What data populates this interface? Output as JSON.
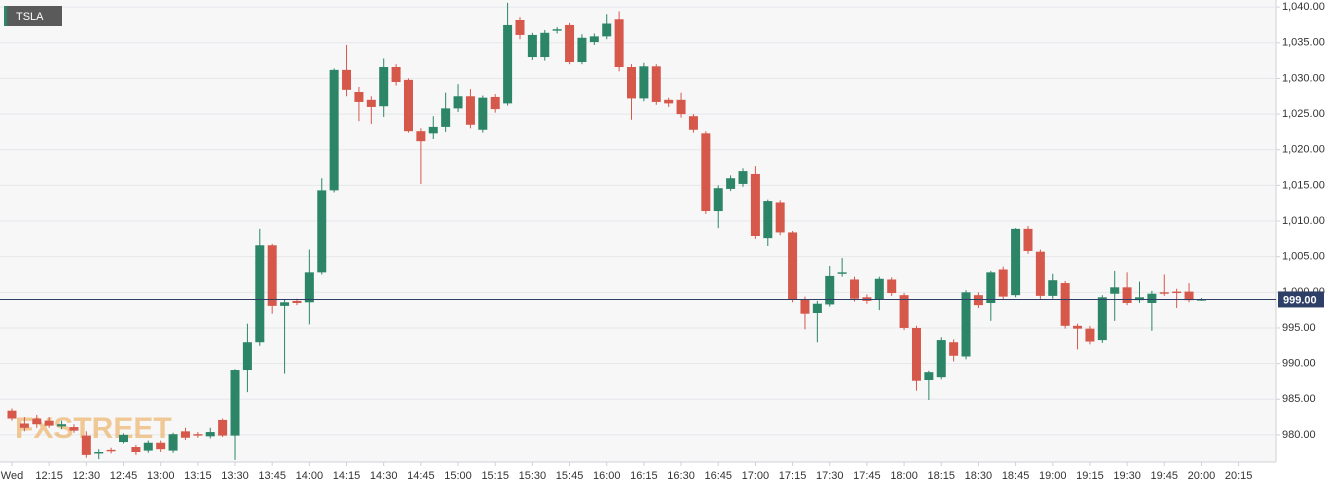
{
  "chart_data": {
    "type": "candlestick",
    "title": "TSLA",
    "watermark": "FXSTREET",
    "categories": [
      "Wed",
      null,
      null,
      "12:15",
      null,
      null,
      "12:30",
      null,
      null,
      "12:45",
      null,
      null,
      "13:00",
      null,
      null,
      "13:15",
      null,
      null,
      "13:30",
      null,
      null,
      "13:45",
      null,
      null,
      "14:00",
      null,
      null,
      "14:15",
      null,
      null,
      "14:30",
      null,
      null,
      "14:45",
      null,
      null,
      "15:00",
      null,
      null,
      "15:15",
      null,
      null,
      "15:30",
      null,
      null,
      "15:45",
      null,
      null,
      "16:00",
      null,
      null,
      "16:15",
      null,
      null,
      "16:30",
      null,
      null,
      "16:45",
      null,
      null,
      "17:00",
      null,
      null,
      "17:15",
      null,
      null,
      "17:30",
      null,
      null,
      "17:45",
      null,
      null,
      "18:00",
      null,
      null,
      "18:15",
      null,
      null,
      "18:30",
      null,
      null,
      "18:45",
      null,
      null,
      "19:00",
      null,
      null,
      "19:15",
      null,
      null,
      "19:30",
      null,
      null,
      "19:45",
      null,
      null,
      "20:00",
      null,
      null,
      "20:15"
    ],
    "open": [
      983.4,
      981.6,
      982.3,
      982.0,
      981.2,
      981.1,
      979.9,
      977.4,
      977.9,
      979.0,
      978.3,
      977.8,
      978.9,
      977.8,
      980.5,
      980.1,
      979.8,
      982.1,
      979.9,
      989.1,
      993.0,
      1006.6,
      998.1,
      998.8,
      998.6,
      1002.8,
      1014.3,
      1031.2,
      1028.1,
      1027.0,
      1026.1,
      1031.6,
      1029.8,
      1022.6,
      1022.3,
      1023.2,
      1025.8,
      1027.5,
      1022.8,
      1027.4,
      1026.5,
      1038.2,
      1033.0,
      1033.0,
      1036.7,
      1037.5,
      1032.3,
      1035.1,
      1035.9,
      1038.3,
      1031.6,
      1027.2,
      1031.7,
      1027.0,
      1027.0,
      1024.7,
      1022.3,
      1011.4,
      1014.5,
      1015.2,
      1016.6,
      1007.6,
      1012.6,
      1008.4,
      999.0,
      997.1,
      998.3,
      1002.6,
      1001.8,
      999.3,
      999.0,
      1001.8,
      999.6,
      995.0,
      987.7,
      988.1,
      993.0,
      991.0,
      999.6,
      998.5,
      1003.2,
      999.6,
      1008.9,
      1005.7,
      999.5,
      1001.3,
      995.3,
      994.9,
      993.3,
      999.8,
      1000.7,
      998.9,
      998.5,
      1000.0,
      1000.1,
      1000.1,
      999.0,
      null,
      null,
      null
    ],
    "high": [
      983.7,
      982.5,
      982.8,
      982.5,
      982.0,
      981.5,
      980.5,
      978.0,
      978.2,
      980.2,
      978.6,
      979.2,
      979.2,
      980.3,
      981.0,
      980.4,
      981.0,
      982.3,
      989.2,
      995.6,
      1008.9,
      1006.8,
      999.0,
      999.1,
      1006.0,
      1016.0,
      1031.4,
      1034.7,
      1028.8,
      1027.5,
      1032.8,
      1032.0,
      1030.0,
      1023.0,
      1024.7,
      1028.0,
      1029.2,
      1028.5,
      1027.6,
      1027.8,
      1040.6,
      1038.6,
      1036.4,
      1036.8,
      1037.2,
      1037.8,
      1036.2,
      1036.3,
      1039.0,
      1039.4,
      1032.0,
      1032.2,
      1032.0,
      1027.3,
      1028.0,
      1025.0,
      1022.6,
      1015.0,
      1016.4,
      1017.4,
      1017.7,
      1013.0,
      1012.9,
      1008.6,
      999.4,
      998.8,
      1003.7,
      1004.8,
      1002.2,
      999.7,
      1002.2,
      1002.1,
      999.9,
      995.3,
      989.0,
      993.7,
      993.4,
      1000.3,
      1000.0,
      1003.0,
      1003.6,
      1009.0,
      1009.3,
      1006.0,
      1002.6,
      1001.6,
      995.6,
      995.3,
      999.6,
      1003.0,
      1002.8,
      1001.5,
      1000.2,
      1002.5,
      1000.5,
      1001.3,
      999.2,
      null,
      null,
      null
    ],
    "low": [
      982.0,
      980.5,
      981.0,
      981.0,
      980.8,
      980.3,
      976.8,
      976.6,
      977.4,
      978.8,
      977.2,
      977.5,
      977.6,
      977.5,
      979.3,
      979.6,
      979.5,
      979.7,
      976.5,
      986.0,
      992.5,
      997.0,
      988.6,
      998.2,
      995.5,
      1002.5,
      1014.0,
      1027.5,
      1024.0,
      1023.6,
      1024.6,
      1029.0,
      1022.4,
      1015.2,
      1021.5,
      1022.5,
      1025.3,
      1023.0,
      1022.4,
      1025.2,
      1026.2,
      1035.5,
      1032.6,
      1032.5,
      1036.3,
      1032.0,
      1032.0,
      1034.7,
      1035.5,
      1031.0,
      1024.2,
      1026.8,
      1026.3,
      1026.0,
      1024.5,
      1022.4,
      1011.0,
      1009.0,
      1014.2,
      1014.8,
      1007.5,
      1006.5,
      1008.0,
      998.6,
      994.8,
      993.0,
      998.0,
      1002.2,
      998.7,
      998.4,
      997.5,
      999.5,
      994.7,
      986.2,
      984.9,
      987.8,
      990.3,
      990.6,
      997.8,
      996.0,
      999.0,
      999.3,
      1005.4,
      999.0,
      999.1,
      994.9,
      992.0,
      992.7,
      992.9,
      996.0,
      998.2,
      998.5,
      994.6,
      999.5,
      997.8,
      998.6,
      998.8,
      null,
      null,
      null
    ],
    "close": [
      982.3,
      981.0,
      981.5,
      981.3,
      981.5,
      980.6,
      977.2,
      977.6,
      977.7,
      980.0,
      977.6,
      978.9,
      978.0,
      980.1,
      979.6,
      979.9,
      980.4,
      979.9,
      989.1,
      993.0,
      1006.6,
      998.1,
      998.6,
      998.5,
      1002.8,
      1014.3,
      1031.2,
      1028.4,
      1026.7,
      1026.0,
      1031.6,
      1029.5,
      1022.6,
      1021.2,
      1023.2,
      1025.8,
      1027.5,
      1023.5,
      1027.3,
      1025.7,
      1037.5,
      1036.1,
      1036.1,
      1036.4,
      1036.9,
      1032.3,
      1035.7,
      1035.9,
      1037.7,
      1031.6,
      1027.2,
      1031.7,
      1026.7,
      1026.5,
      1025.0,
      1022.8,
      1011.4,
      1014.6,
      1016.0,
      1017.0,
      1007.9,
      1012.8,
      1008.4,
      999.0,
      997.0,
      998.4,
      1002.3,
      1002.8,
      999.1,
      998.8,
      1001.9,
      999.9,
      995.0,
      987.6,
      988.8,
      993.3,
      991.1,
      1000.0,
      998.2,
      1002.8,
      999.4,
      1008.9,
      1005.8,
      999.5,
      1001.7,
      995.3,
      994.9,
      993.1,
      999.3,
      1000.7,
      998.5,
      999.3,
      999.8,
      999.8,
      999.9,
      998.9,
      999.0,
      null,
      null,
      null
    ],
    "up_color": "#2c8566",
    "down_color": "#d5584a",
    "ylim": [
      976.2,
      1041
    ],
    "yticks": [
      {
        "value": 980,
        "label": "980.00"
      },
      {
        "value": 985,
        "label": "985.00"
      },
      {
        "value": 990,
        "label": "990.00"
      },
      {
        "value": 995,
        "label": "995.00"
      },
      {
        "value": 1000,
        "label": "1,000.00"
      },
      {
        "value": 1005,
        "label": "1,005.00"
      },
      {
        "value": 1010,
        "label": "1,010.00"
      },
      {
        "value": 1015,
        "label": "1,015.00"
      },
      {
        "value": 1020,
        "label": "1,020.00"
      },
      {
        "value": 1025,
        "label": "1,025.00"
      },
      {
        "value": 1030,
        "label": "1,030.00"
      },
      {
        "value": 1035,
        "label": "1,035.00"
      },
      {
        "value": 1040,
        "label": "1,040.00"
      }
    ],
    "last_price": {
      "value": 999,
      "label": "999.00"
    },
    "grid": true
  }
}
